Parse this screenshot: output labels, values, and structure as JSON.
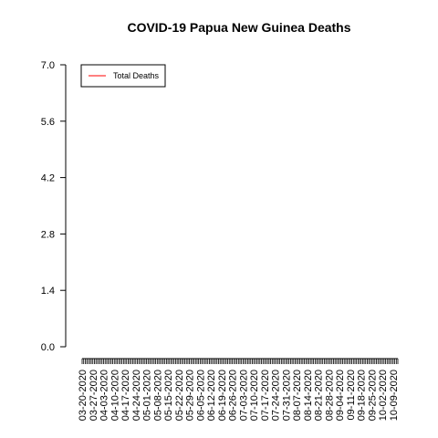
{
  "chart_data": {
    "type": "line",
    "title": "COVID-19 Papua New Guinea Deaths",
    "xlabel": "",
    "ylabel": "",
    "ylim": [
      0,
      7
    ],
    "yticks": [
      "0.0",
      "1.4",
      "2.8",
      "4.2",
      "5.6",
      "7.0"
    ],
    "x_labels": [
      "03-20-2020",
      "03-27-2020",
      "04-03-2020",
      "04-10-2020",
      "04-17-2020",
      "04-24-2020",
      "05-01-2020",
      "05-08-2020",
      "05-15-2020",
      "05-22-2020",
      "05-29-2020",
      "06-05-2020",
      "06-12-2020",
      "06-19-2020",
      "06-26-2020",
      "07-03-2020",
      "07-10-2020",
      "07-17-2020",
      "07-24-2020",
      "07-31-2020",
      "08-07-2020",
      "08-14-2020",
      "08-21-2020",
      "08-28-2020",
      "09-04-2020",
      "09-11-2020",
      "09-18-2020",
      "09-25-2020",
      "10-02-2020",
      "10-09-2020"
    ],
    "x_range": [
      "03-20-2020",
      "10-12-2020"
    ],
    "legend_position": "top-left",
    "grid": false,
    "series": [
      {
        "name": "Total Deaths",
        "color": "#ff0000",
        "values": []
      }
    ]
  }
}
